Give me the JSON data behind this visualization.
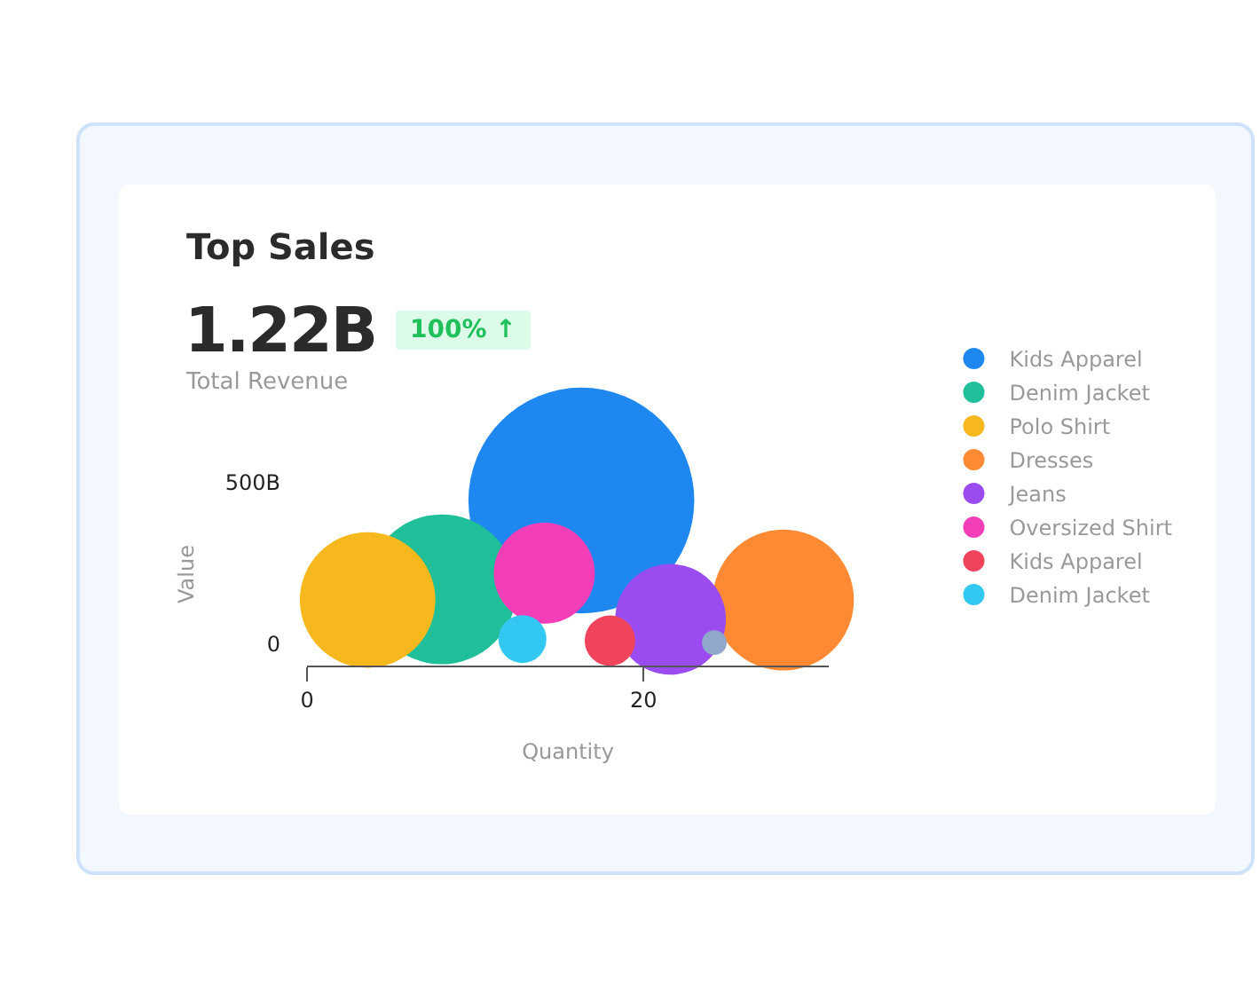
{
  "chart_data": {
    "type": "bubble",
    "title": "Top Sales",
    "annotations": [
      "1.22B",
      "100% ↑",
      "Total Revenue"
    ],
    "xlabel": "Quantity",
    "ylabel": "Value",
    "xlim": [
      0,
      31
    ],
    "xticks": [
      0,
      20
    ],
    "ylim": [
      -66,
      500
    ],
    "yticks": [
      0,
      {
        "value": 500,
        "label": "500B"
      }
    ],
    "grid": false,
    "legend": "right",
    "series": [
      {
        "name": "Kids Apparel",
        "color": "#1e88f0",
        "x": [
          16.3
        ],
        "values": [
          445
        ],
        "sizes": [
          1
        ]
      },
      {
        "name": "Denim Jacket",
        "color": "#1fbf9a",
        "x": [
          8.0
        ],
        "values": [
          170
        ],
        "sizes": [
          0.44
        ]
      },
      {
        "name": "Polo Shirt",
        "color": "#f6b81c",
        "x": [
          3.6
        ],
        "values": [
          137
        ],
        "sizes": [
          0.36
        ]
      },
      {
        "name": "Dresses",
        "color": "#ff8a33",
        "x": [
          28.3
        ],
        "values": [
          137
        ],
        "sizes": [
          0.39
        ]
      },
      {
        "name": "Jeans",
        "color": "#9b4cf0",
        "x": [
          21.6
        ],
        "values": [
          77
        ],
        "sizes": [
          0.24
        ]
      },
      {
        "name": "Oversized Shirt",
        "color": "#f23fb8",
        "x": [
          14.1
        ],
        "values": [
          220
        ],
        "sizes": [
          0.2
        ]
      },
      {
        "name": "Kids Apparel",
        "color": "#f0445c",
        "x": [
          18.0
        ],
        "values": [
          11
        ],
        "sizes": [
          0.05
        ]
      },
      {
        "name": "Denim Jacket",
        "color": "#33c8f2",
        "x": [
          12.8
        ],
        "values": [
          16
        ],
        "sizes": [
          0.045
        ]
      },
      {
        "color": "#8fa8cc",
        "x": [
          24.2
        ],
        "values": [
          5
        ],
        "sizes": [
          0.012
        ]
      }
    ]
  }
}
